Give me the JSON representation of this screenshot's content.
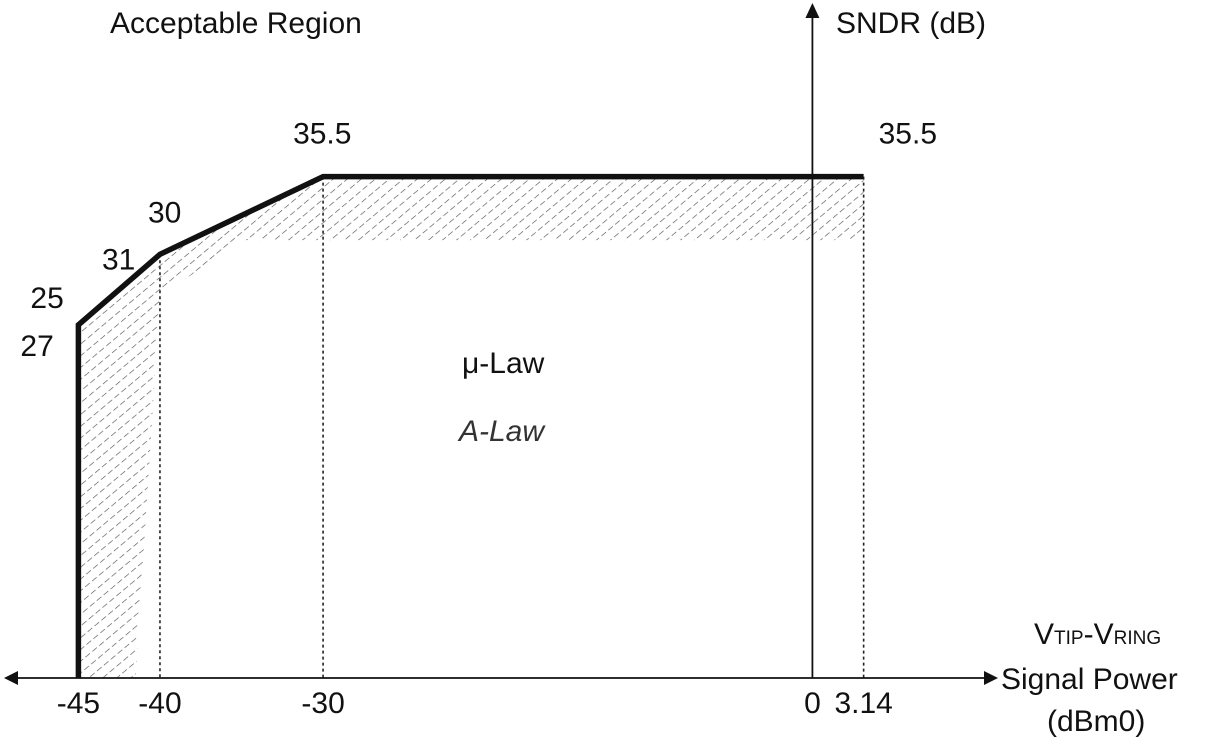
{
  "chart_data": {
    "type": "line",
    "title": "Acceptable Region",
    "ylabel": "SNDR (dB)",
    "xlabel": {
      "main": "V",
      "sub_tip": "TIP",
      "dash": "-",
      "main2": "V",
      "sub_ring": "RING",
      "line2": "Signal Power",
      "line3": "(dBm0)"
    },
    "x_ticks": [
      {
        "value": -45,
        "label": "-45"
      },
      {
        "value": -40,
        "label": "-40"
      },
      {
        "value": -30,
        "label": "-30"
      },
      {
        "value": 0,
        "label": "0"
      },
      {
        "value": 3.14,
        "label": "3.14"
      }
    ],
    "xlim": [
      -49.5,
      11.5
    ],
    "ylim": [
      0,
      48
    ],
    "series": [
      {
        "name": "μ-Law",
        "style": "normal",
        "points": [
          {
            "x": -45,
            "y": 0
          },
          {
            "x": -45,
            "y": 25
          },
          {
            "x": -40,
            "y": 30
          },
          {
            "x": -30,
            "y": 35.5
          },
          {
            "x": 3.14,
            "y": 35.5
          }
        ]
      },
      {
        "name": "A-Law",
        "style": "italic",
        "points": [
          {
            "x": -41.5,
            "y": 0
          },
          {
            "x": -40,
            "y": 27
          },
          {
            "x": -35,
            "y": 31
          },
          {
            "x": -30,
            "y": 31
          },
          {
            "x": 3.14,
            "y": 31
          }
        ]
      }
    ],
    "point_labels": [
      {
        "text": "25",
        "x": -45,
        "y": 25
      },
      {
        "text": "27",
        "x": -45,
        "y": 25
      },
      {
        "text": "30",
        "x": -40,
        "y": 30
      },
      {
        "text": "31",
        "x": -40,
        "y": 30
      },
      {
        "text": "35.5",
        "x": -30,
        "y": 35.5
      },
      {
        "text": "35.5",
        "x": 3.14,
        "y": 35.5
      }
    ],
    "guide_lines_x": [
      -40,
      -30,
      3.14
    ],
    "colors": {
      "curve": "#111111",
      "hatch": "#555555",
      "axis": "#111111"
    }
  }
}
